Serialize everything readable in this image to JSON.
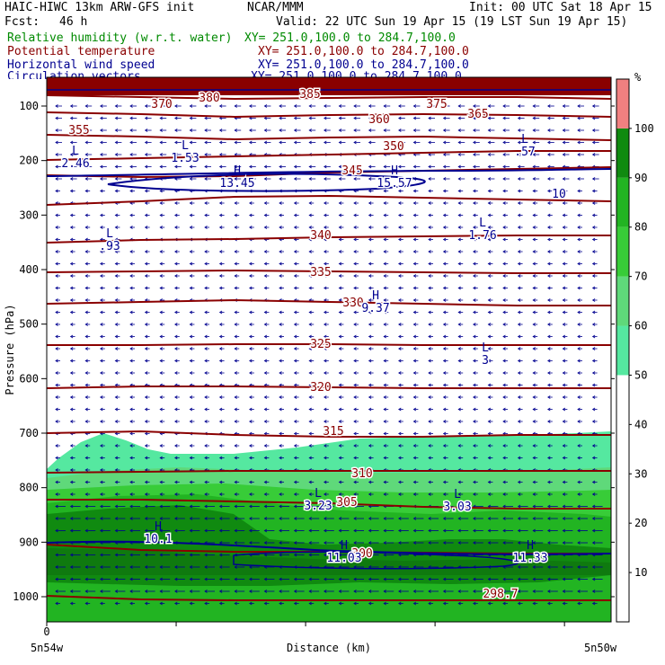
{
  "header": {
    "model": "HAIC-HIWC 13km ARW-GFS init",
    "org": "NCAR/MMM",
    "init": "Init: 00 UTC Sat 18 Apr 15",
    "fcst_label": "Fcst:",
    "fcst_value": "46 h",
    "valid": "Valid: 22 UTC Sun 19 Apr 15 (19 LST Sun 19 Apr 15)"
  },
  "fields": [
    {
      "name": "Relative humidity (w.r.t. water)",
      "xy": "XY= 251.0,100.0 to 284.7,100.0",
      "color": "#008a00"
    },
    {
      "name": "Potential temperature",
      "xy": "XY= 251.0,100.0 to 284.7,100.0",
      "color": "#8a0000"
    },
    {
      "name": "Horizontal wind speed",
      "xy": "XY= 251.0,100.0 to 284.7,100.0",
      "color": "#000090"
    },
    {
      "name": "Circulation vectors",
      "xy": "XY= 251.0,100.0 to 284.7,100.0",
      "color": "#000090"
    }
  ],
  "chart_data": {
    "type": "heatmap",
    "xlabel": "Distance (km)",
    "ylabel": "Pressure (hPa)",
    "x_start_label": "0",
    "x_left_label": "5n54w",
    "x_right_label": "5n50w",
    "y_ticks": [
      100,
      200,
      300,
      400,
      500,
      600,
      700,
      800,
      900,
      1000
    ],
    "colorbar": {
      "unit": "%",
      "ticks": [
        10,
        20,
        30,
        40,
        50,
        60,
        70,
        80,
        90,
        100
      ],
      "bands": [
        {
          "from": 0,
          "to": 50,
          "color": "#ffffff"
        },
        {
          "from": 50,
          "to": 60,
          "color": "#55e8a0"
        },
        {
          "from": 60,
          "to": 70,
          "color": "#5fd97a"
        },
        {
          "from": 70,
          "to": 80,
          "color": "#38cc38"
        },
        {
          "from": 80,
          "to": 90,
          "color": "#22b422"
        },
        {
          "from": 90,
          "to": 100,
          "color": "#108a10"
        },
        {
          "from": 100,
          "to": 110,
          "color": "#f08080"
        }
      ]
    },
    "theta_labels": [
      "355",
      "350",
      "345",
      "340",
      "335",
      "330",
      "325",
      "320",
      "315",
      "310",
      "305",
      "300",
      "298.7",
      "360",
      "365",
      "370",
      "375",
      "380",
      "385"
    ],
    "wind_labels": [
      {
        "kind": "L",
        "value": "2.46"
      },
      {
        "kind": "L",
        "value": "1.53"
      },
      {
        "kind": "H",
        "value": "13.45"
      },
      {
        "kind": "H",
        "value": "15.57"
      },
      {
        "kind": "L",
        "value": ".57"
      },
      {
        "kind": "L",
        "value": ".93"
      },
      {
        "kind": "L",
        "value": "1.76"
      },
      {
        "kind": "H",
        "value": "9.37"
      },
      {
        "kind": "L",
        "value": "3"
      },
      {
        "kind": "L",
        "value": "3.23"
      },
      {
        "kind": "L",
        "value": "3.03"
      },
      {
        "kind": "H",
        "value": "10.1"
      },
      {
        "kind": "H",
        "value": "11.03"
      },
      {
        "kind": "H",
        "value": "11.33"
      },
      {
        "kind": "",
        "value": "10"
      }
    ]
  }
}
